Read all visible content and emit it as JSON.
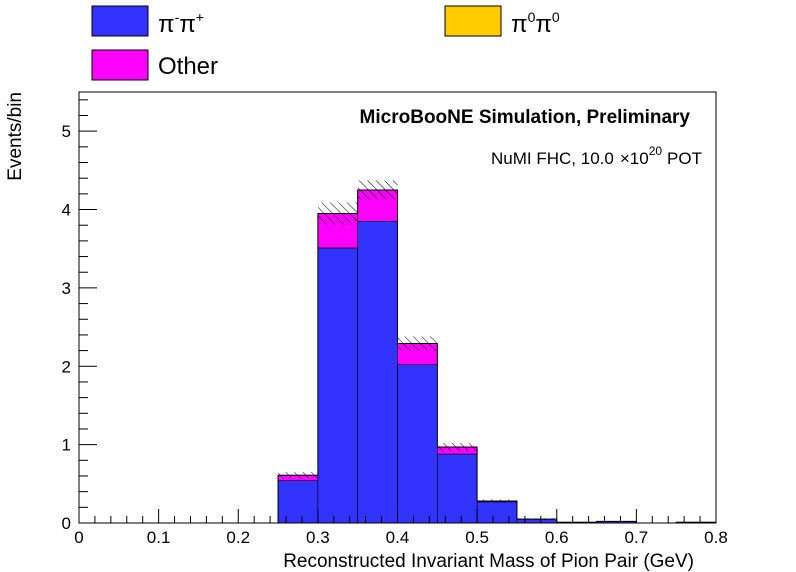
{
  "chart_data": {
    "type": "bar",
    "stacked": true,
    "title": "",
    "xlabel": "Reconstructed Invariant Mass of Pion Pair (GeV)",
    "ylabel": "Events/bin",
    "xlim": [
      0,
      0.8
    ],
    "ylim": [
      0,
      5.5
    ],
    "x_ticks": [
      "0",
      "0.1",
      "0.2",
      "0.3",
      "0.4",
      "0.5",
      "0.6",
      "0.7",
      "0.8"
    ],
    "y_ticks": [
      "0",
      "1",
      "2",
      "3",
      "4",
      "5"
    ],
    "bin_edges": [
      0.25,
      0.3,
      0.35,
      0.4,
      0.45,
      0.5,
      0.55,
      0.6,
      0.65,
      0.7,
      0.75,
      0.8
    ],
    "series": [
      {
        "name": "π-π+",
        "name_base": "π",
        "name_sup1": "-",
        "name_mid": "π",
        "name_sup2": "+",
        "color": "#3333ff",
        "values": [
          0.54,
          3.51,
          3.85,
          2.02,
          0.88,
          0.27,
          0.05,
          0.01,
          0.02,
          0.0,
          0.01
        ]
      },
      {
        "name": "π0π0",
        "name_base": "π",
        "name_sup1": "0",
        "name_mid": "π",
        "name_sup2": "0",
        "color": "#ffcc00",
        "values": [
          0,
          0,
          0,
          0,
          0,
          0,
          0,
          0,
          0,
          0,
          0
        ]
      },
      {
        "name": "Other",
        "color": "#ff00ff",
        "values": [
          0.07,
          0.44,
          0.4,
          0.27,
          0.09,
          0.01,
          0.0,
          0.0,
          0.0,
          0.0,
          0.0
        ]
      }
    ],
    "uncertainty": [
      0.04,
      0.14,
      0.12,
      0.09,
      0.05,
      0.02,
      0.01,
      0.0,
      0.0,
      0.0,
      0.0
    ],
    "annotations": {
      "simulation": "MicroBooNE Simulation, Preliminary",
      "pot_prefix": "NuMI FHC, 10.0",
      "pot_times": "×10",
      "pot_exp": "20",
      "pot_suffix": "POT"
    },
    "legend_placement": "top",
    "grid": false
  }
}
